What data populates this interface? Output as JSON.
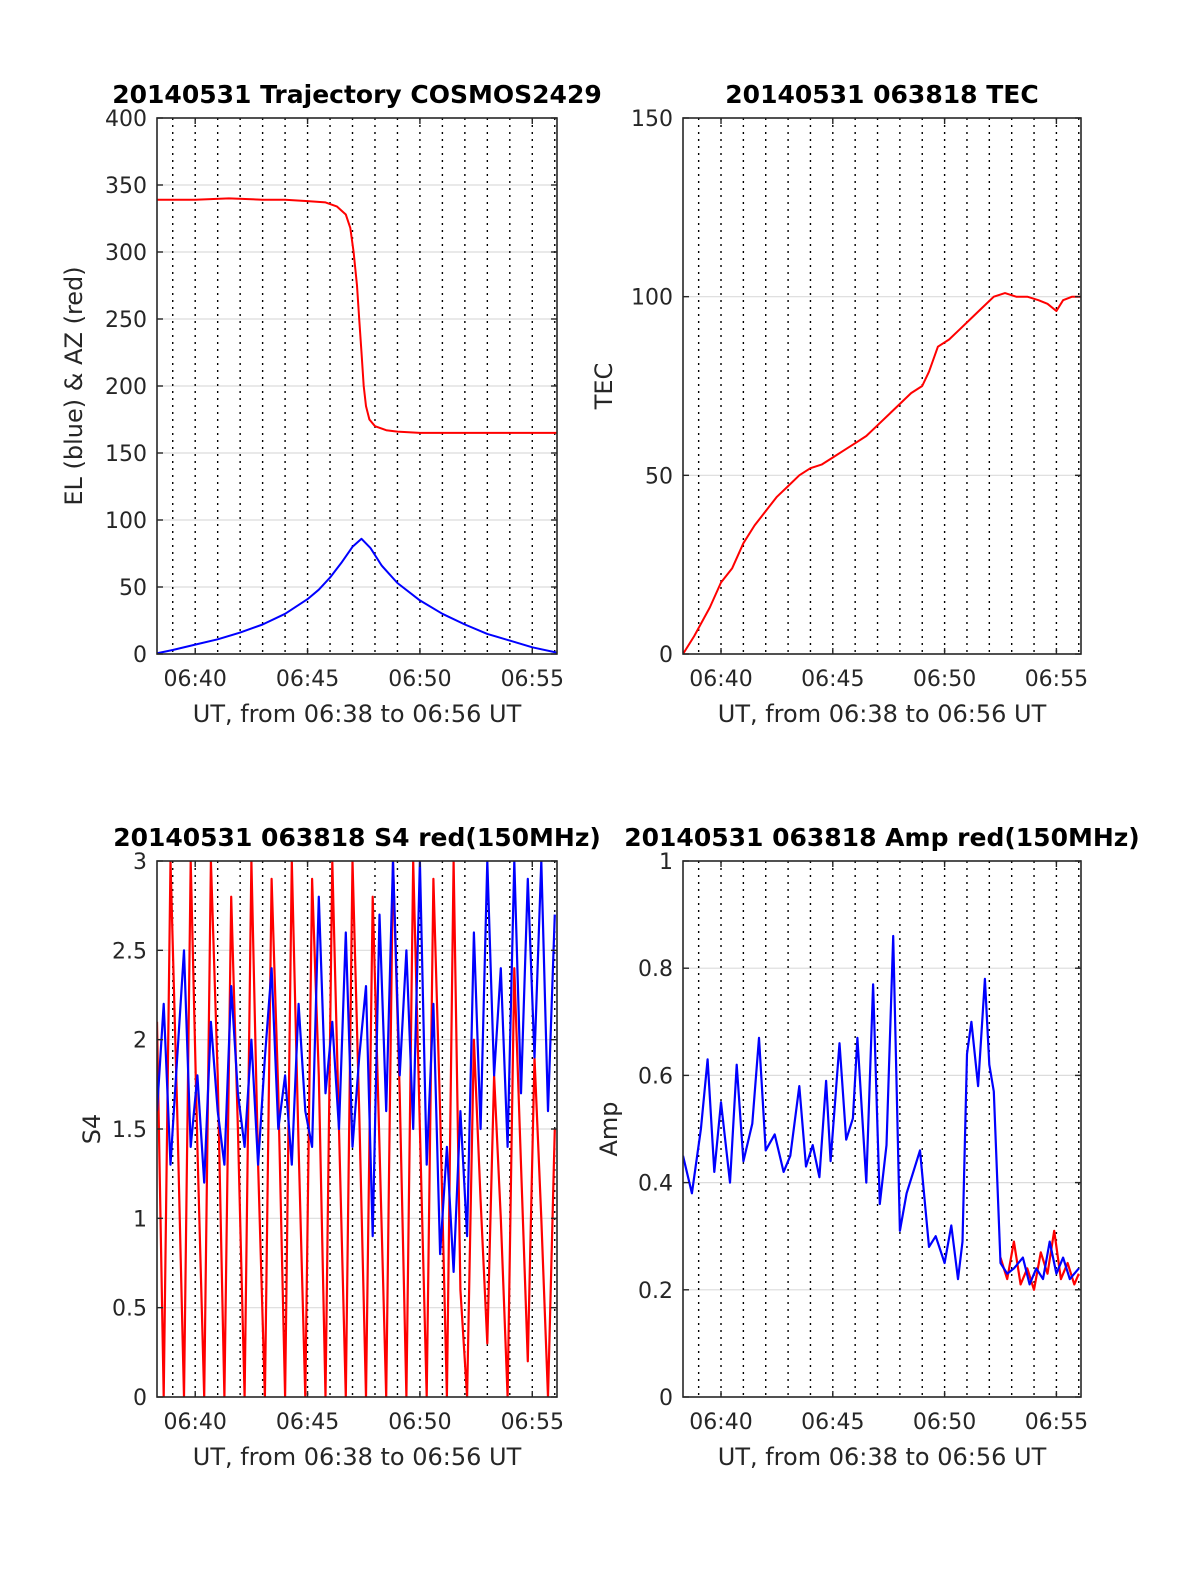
{
  "chart_data": [
    {
      "type": "line",
      "title": "20140531 Trajectory COSMOS2429",
      "xlabel": "UT, from 06:38 to 06:56 UT",
      "ylabel": "EL (blue) & AZ (red)",
      "xlim": [
        38.3,
        56.1
      ],
      "ylim": [
        0,
        400
      ],
      "yticks": [
        0,
        50,
        100,
        150,
        200,
        250,
        300,
        350,
        400
      ],
      "ytick_labels": [
        "0",
        "50",
        "100",
        "150",
        "200",
        "250",
        "300",
        "350",
        "400"
      ],
      "xticks": [
        40,
        45,
        50,
        55
      ],
      "xtick_labels": [
        "06:40",
        "06:45",
        "06:50",
        "06:55"
      ],
      "vgrid_interval": 1,
      "grid": "horizontal solid, vertical dotted every minute",
      "series": [
        {
          "color": "#ff0000",
          "x": [
            38.3,
            40,
            41.5,
            43,
            44,
            45,
            45.8,
            46.3,
            46.7,
            46.9,
            47.05,
            47.2,
            47.3,
            47.4,
            47.5,
            47.6,
            47.75,
            48.0,
            48.5,
            49.0,
            50,
            51,
            53,
            56.1
          ],
          "y": [
            339,
            339,
            340,
            339,
            339,
            338,
            337,
            334,
            328,
            318,
            300,
            275,
            250,
            225,
            200,
            185,
            175,
            170,
            167,
            166,
            165,
            165,
            165,
            165
          ]
        },
        {
          "color": "#0000ff",
          "x": [
            38.3,
            39,
            40,
            41,
            42,
            43,
            44,
            45,
            45.5,
            46,
            46.5,
            47.0,
            47.4,
            47.8,
            48.3,
            49,
            50,
            51,
            52,
            53,
            54,
            55,
            56.1
          ],
          "y": [
            0.5,
            3,
            7,
            11,
            16,
            22,
            30,
            41,
            48,
            57,
            68,
            80,
            86,
            79,
            66,
            53,
            40,
            30,
            22,
            15,
            10,
            5,
            1
          ]
        }
      ]
    },
    {
      "type": "line",
      "title": "20140531 063818 TEC",
      "xlabel": "UT, from 06:38 to 06:56 UT",
      "ylabel": "TEC",
      "xlim": [
        38.3,
        56.1
      ],
      "ylim": [
        0,
        150
      ],
      "yticks": [
        0,
        50,
        100,
        150
      ],
      "ytick_labels": [
        "0",
        "50",
        "100",
        "150"
      ],
      "xticks": [
        40,
        45,
        50,
        55
      ],
      "xtick_labels": [
        "06:40",
        "06:45",
        "06:50",
        "06:55"
      ],
      "vgrid_interval": 1,
      "grid": "horizontal solid, vertical dotted every minute",
      "series": [
        {
          "color": "#ff0000",
          "x": [
            38.3,
            38.8,
            39.5,
            40.0,
            40.5,
            41.0,
            41.5,
            42.0,
            42.5,
            43.0,
            43.5,
            44.0,
            44.5,
            45.0,
            45.5,
            46.0,
            46.5,
            47.0,
            47.5,
            48.0,
            48.5,
            49.0,
            49.3,
            49.7,
            50.2,
            50.7,
            51.2,
            51.7,
            52.2,
            52.7,
            53.2,
            53.7,
            54.2,
            54.6,
            55.0,
            55.3,
            55.7,
            56.1
          ],
          "y": [
            0,
            5,
            13,
            20,
            24,
            31,
            36,
            40,
            44,
            47,
            50,
            52,
            53,
            55,
            57,
            59,
            61,
            64,
            67,
            70,
            73,
            75,
            79,
            86,
            88,
            91,
            94,
            97,
            100,
            101,
            100,
            100,
            99,
            98,
            96,
            99,
            100,
            100
          ]
        }
      ]
    },
    {
      "type": "line",
      "title": "20140531 063818 S4 red(150MHz)",
      "xlabel": "UT, from 06:38 to 06:56 UT",
      "ylabel": "S4",
      "xlim": [
        38.3,
        56.1
      ],
      "ylim": [
        0,
        3
      ],
      "yticks": [
        0,
        0.5,
        1,
        1.5,
        2,
        2.5,
        3
      ],
      "ytick_labels": [
        "0",
        "0.5",
        "1",
        "1.5",
        "2",
        "2.5",
        "3"
      ],
      "xticks": [
        40,
        45,
        50,
        55
      ],
      "xtick_labels": [
        "06:40",
        "06:45",
        "06:50",
        "06:55"
      ],
      "vgrid_interval": 1,
      "grid": "horizontal solid, vertical dotted every minute",
      "series": [
        {
          "color": "#ff0000",
          "x": [
            38.3,
            38.6,
            38.9,
            39.2,
            39.5,
            39.8,
            40.1,
            40.4,
            40.7,
            41.0,
            41.3,
            41.6,
            41.9,
            42.2,
            42.5,
            42.8,
            43.1,
            43.4,
            43.7,
            44.0,
            44.3,
            44.6,
            44.9,
            45.2,
            45.5,
            45.8,
            46.1,
            46.4,
            46.7,
            47.0,
            47.3,
            47.6,
            47.9,
            48.2,
            48.5,
            48.8,
            49.1,
            49.4,
            49.7,
            50.0,
            50.3,
            50.6,
            50.9,
            51.2,
            51.5,
            51.8,
            52.1,
            52.4,
            52.7,
            53.0,
            53.3,
            53.6,
            53.9,
            54.2,
            54.5,
            54.8,
            55.1,
            55.4,
            55.7,
            56.0
          ],
          "y": [
            2.1,
            0,
            3.0,
            1.6,
            0,
            3.0,
            1.4,
            0,
            3.0,
            1.8,
            0,
            2.8,
            1.5,
            0,
            3.0,
            1.3,
            0,
            2.9,
            1.7,
            0,
            3.0,
            1.4,
            0,
            2.9,
            1.8,
            0,
            3.0,
            1.5,
            0,
            3.0,
            1.6,
            0,
            2.8,
            1.4,
            0,
            3.0,
            1.7,
            0,
            3.0,
            1.5,
            0,
            2.9,
            1.6,
            0,
            3.0,
            0.6,
            0,
            2.0,
            1.1,
            0.3,
            1.8,
            1.0,
            0,
            2.4,
            1.3,
            0.2,
            1.9,
            1.0,
            0,
            1.5
          ]
        },
        {
          "color": "#0000ff",
          "x": [
            38.3,
            38.6,
            38.9,
            39.2,
            39.5,
            39.8,
            40.1,
            40.4,
            40.7,
            41.0,
            41.3,
            41.6,
            41.9,
            42.2,
            42.5,
            42.8,
            43.1,
            43.4,
            43.7,
            44.0,
            44.3,
            44.6,
            44.9,
            45.2,
            45.5,
            45.8,
            46.1,
            46.4,
            46.7,
            47.0,
            47.3,
            47.6,
            47.9,
            48.2,
            48.5,
            48.8,
            49.1,
            49.4,
            49.7,
            50.0,
            50.3,
            50.6,
            50.9,
            51.2,
            51.5,
            51.8,
            52.1,
            52.4,
            52.7,
            53.0,
            53.3,
            53.6,
            53.9,
            54.2,
            54.5,
            54.8,
            55.1,
            55.4,
            55.7,
            56.0
          ],
          "y": [
            1.6,
            2.2,
            1.3,
            1.9,
            2.5,
            1.4,
            1.8,
            1.2,
            2.1,
            1.6,
            1.3,
            2.3,
            1.7,
            1.4,
            2.0,
            1.3,
            1.9,
            2.4,
            1.5,
            1.8,
            1.3,
            2.2,
            1.6,
            1.4,
            2.8,
            1.7,
            2.1,
            1.5,
            2.6,
            1.4,
            1.9,
            2.3,
            0.9,
            2.7,
            1.6,
            3.0,
            1.8,
            2.5,
            1.5,
            3.0,
            1.3,
            2.2,
            0.8,
            1.4,
            0.7,
            1.6,
            0.9,
            2.6,
            1.5,
            3.0,
            1.8,
            2.4,
            1.4,
            3.0,
            1.7,
            2.9,
            1.9,
            3.0,
            1.6,
            2.7
          ]
        }
      ]
    },
    {
      "type": "line",
      "title": "20140531 063818 Amp red(150MHz)",
      "xlabel": "UT, from 06:38 to 06:56 UT",
      "ylabel": "Amp",
      "xlim": [
        38.3,
        56.1
      ],
      "ylim": [
        0,
        1
      ],
      "yticks": [
        0,
        0.2,
        0.4,
        0.6,
        0.8,
        1
      ],
      "ytick_labels": [
        "0",
        "0.2",
        "0.4",
        "0.6",
        "0.8",
        "1"
      ],
      "xticks": [
        40,
        45,
        50,
        55
      ],
      "xtick_labels": [
        "06:40",
        "06:45",
        "06:50",
        "06:55"
      ],
      "vgrid_interval": 1,
      "grid": "horizontal solid, vertical dotted every minute",
      "series": [
        {
          "color": "#ff0000",
          "x": [
            52.5,
            52.8,
            53.1,
            53.4,
            53.7,
            54.0,
            54.3,
            54.6,
            54.9,
            55.2,
            55.5,
            55.8,
            56.0
          ],
          "y": [
            0.26,
            0.22,
            0.29,
            0.21,
            0.24,
            0.2,
            0.27,
            0.23,
            0.31,
            0.22,
            0.25,
            0.21,
            0.23
          ]
        },
        {
          "color": "#0000ff",
          "x": [
            38.3,
            38.7,
            39.1,
            39.4,
            39.7,
            40.0,
            40.4,
            40.7,
            41.0,
            41.4,
            41.7,
            42.0,
            42.4,
            42.8,
            43.1,
            43.5,
            43.8,
            44.1,
            44.4,
            44.7,
            44.9,
            45.3,
            45.6,
            45.9,
            46.1,
            46.5,
            46.8,
            47.1,
            47.4,
            47.7,
            48.0,
            48.3,
            48.6,
            48.9,
            49.3,
            49.6,
            50.0,
            50.3,
            50.6,
            50.8,
            51.0,
            51.2,
            51.5,
            51.8,
            52.0,
            52.2,
            52.5,
            52.8,
            53.1,
            53.5,
            53.8,
            54.1,
            54.4,
            54.7,
            55.0,
            55.3,
            55.6,
            56.0
          ],
          "y": [
            0.45,
            0.38,
            0.5,
            0.63,
            0.42,
            0.55,
            0.4,
            0.62,
            0.44,
            0.51,
            0.67,
            0.46,
            0.49,
            0.42,
            0.45,
            0.58,
            0.43,
            0.47,
            0.41,
            0.59,
            0.44,
            0.66,
            0.48,
            0.52,
            0.67,
            0.4,
            0.77,
            0.36,
            0.47,
            0.86,
            0.31,
            0.38,
            0.42,
            0.46,
            0.28,
            0.3,
            0.25,
            0.32,
            0.22,
            0.29,
            0.64,
            0.7,
            0.58,
            0.78,
            0.62,
            0.57,
            0.25,
            0.23,
            0.24,
            0.26,
            0.21,
            0.24,
            0.22,
            0.29,
            0.23,
            0.26,
            0.22,
            0.24
          ]
        }
      ]
    }
  ]
}
